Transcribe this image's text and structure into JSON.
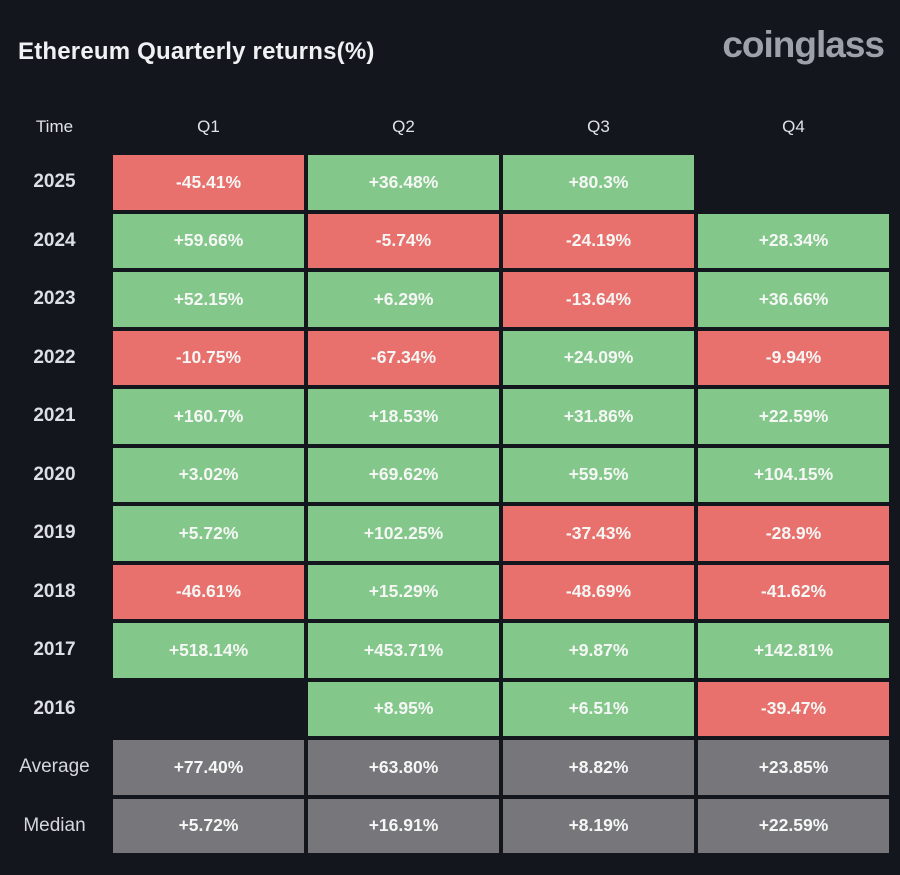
{
  "header": {
    "title": "Ethereum Quarterly returns(%)",
    "logo": "coinglass"
  },
  "colors": {
    "background": "#14161D",
    "positive": "#84C78B",
    "negative": "#E8716E",
    "summary": "#77777B"
  },
  "table": {
    "columns": [
      "Time",
      "Q1",
      "Q2",
      "Q3",
      "Q4"
    ],
    "rows": [
      {
        "label": "2025",
        "kind": "year",
        "cells": [
          "-45.41%",
          "+36.48%",
          "+80.3%",
          ""
        ]
      },
      {
        "label": "2024",
        "kind": "year",
        "cells": [
          "+59.66%",
          "-5.74%",
          "-24.19%",
          "+28.34%"
        ]
      },
      {
        "label": "2023",
        "kind": "year",
        "cells": [
          "+52.15%",
          "+6.29%",
          "-13.64%",
          "+36.66%"
        ]
      },
      {
        "label": "2022",
        "kind": "year",
        "cells": [
          "-10.75%",
          "-67.34%",
          "+24.09%",
          "-9.94%"
        ]
      },
      {
        "label": "2021",
        "kind": "year",
        "cells": [
          "+160.7%",
          "+18.53%",
          "+31.86%",
          "+22.59%"
        ]
      },
      {
        "label": "2020",
        "kind": "year",
        "cells": [
          "+3.02%",
          "+69.62%",
          "+59.5%",
          "+104.15%"
        ]
      },
      {
        "label": "2019",
        "kind": "year",
        "cells": [
          "+5.72%",
          "+102.25%",
          "-37.43%",
          "-28.9%"
        ]
      },
      {
        "label": "2018",
        "kind": "year",
        "cells": [
          "-46.61%",
          "+15.29%",
          "-48.69%",
          "-41.62%"
        ]
      },
      {
        "label": "2017",
        "kind": "year",
        "cells": [
          "+518.14%",
          "+453.71%",
          "+9.87%",
          "+142.81%"
        ]
      },
      {
        "label": "2016",
        "kind": "year",
        "cells": [
          "",
          "+8.95%",
          "+6.51%",
          "-39.47%"
        ]
      },
      {
        "label": "Average",
        "kind": "summary",
        "cells": [
          "+77.40%",
          "+63.80%",
          "+8.82%",
          "+23.85%"
        ]
      },
      {
        "label": "Median",
        "kind": "summary",
        "cells": [
          "+5.72%",
          "+16.91%",
          "+8.19%",
          "+22.59%"
        ]
      }
    ]
  },
  "chart_data": {
    "type": "heatmap",
    "title": "Ethereum Quarterly returns(%)",
    "columns": [
      "Q1",
      "Q2",
      "Q3",
      "Q4"
    ],
    "rows": [
      {
        "label": "2025",
        "values": [
          -45.41,
          36.48,
          80.3,
          null
        ]
      },
      {
        "label": "2024",
        "values": [
          59.66,
          -5.74,
          -24.19,
          28.34
        ]
      },
      {
        "label": "2023",
        "values": [
          52.15,
          6.29,
          -13.64,
          36.66
        ]
      },
      {
        "label": "2022",
        "values": [
          -10.75,
          -67.34,
          24.09,
          -9.94
        ]
      },
      {
        "label": "2021",
        "values": [
          160.7,
          18.53,
          31.86,
          22.59
        ]
      },
      {
        "label": "2020",
        "values": [
          3.02,
          69.62,
          59.5,
          104.15
        ]
      },
      {
        "label": "2019",
        "values": [
          5.72,
          102.25,
          -37.43,
          -28.9
        ]
      },
      {
        "label": "2018",
        "values": [
          -46.61,
          15.29,
          -48.69,
          -41.62
        ]
      },
      {
        "label": "2017",
        "values": [
          518.14,
          453.71,
          9.87,
          142.81
        ]
      },
      {
        "label": "2016",
        "values": [
          null,
          8.95,
          6.51,
          -39.47
        ]
      },
      {
        "label": "Average",
        "values": [
          77.4,
          63.8,
          8.82,
          23.85
        ]
      },
      {
        "label": "Median",
        "values": [
          5.72,
          16.91,
          8.19,
          22.59
        ]
      }
    ],
    "value_unit": "%",
    "color_rule": "positive=green, negative=red, summary rows=gray, missing=blank",
    "legend": "none",
    "grid": "off"
  }
}
